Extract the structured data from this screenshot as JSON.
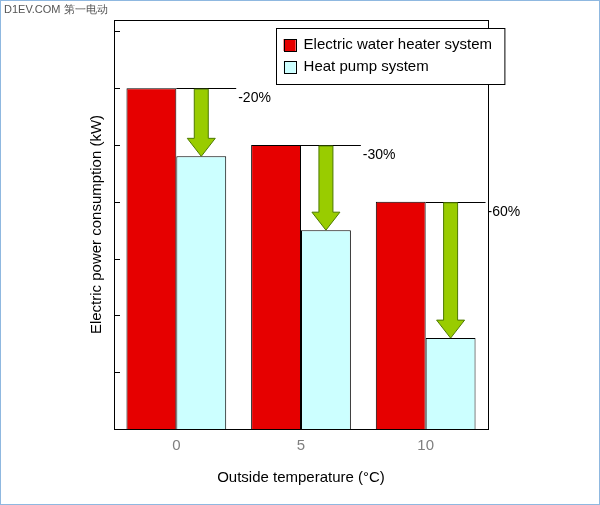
{
  "watermark": "D1EV.COM 第一电动",
  "chart_data": {
    "type": "bar",
    "x_label": "Outside temperature (°C)",
    "y_label": "Electric power consumption (kW)",
    "categories": [
      "0",
      "5",
      "10"
    ],
    "series": [
      {
        "name": "Electric water heater system",
        "color": "#e60000",
        "values": [
          6,
          5,
          4
        ]
      },
      {
        "name": "Heat pump system",
        "color": "#ccffff",
        "values": [
          4.8,
          3.5,
          1.6
        ]
      }
    ],
    "ylim": [
      0,
      7.2
    ],
    "yticks": [
      0,
      1,
      2,
      3,
      4,
      5,
      6,
      7
    ],
    "grid": false,
    "legend": "top-right",
    "tick_labels": "x",
    "annotations": [
      {
        "text": "-20%",
        "category": "0"
      },
      {
        "text": "-30%",
        "category": "5"
      },
      {
        "text": "-60%",
        "category": "10"
      }
    ]
  }
}
